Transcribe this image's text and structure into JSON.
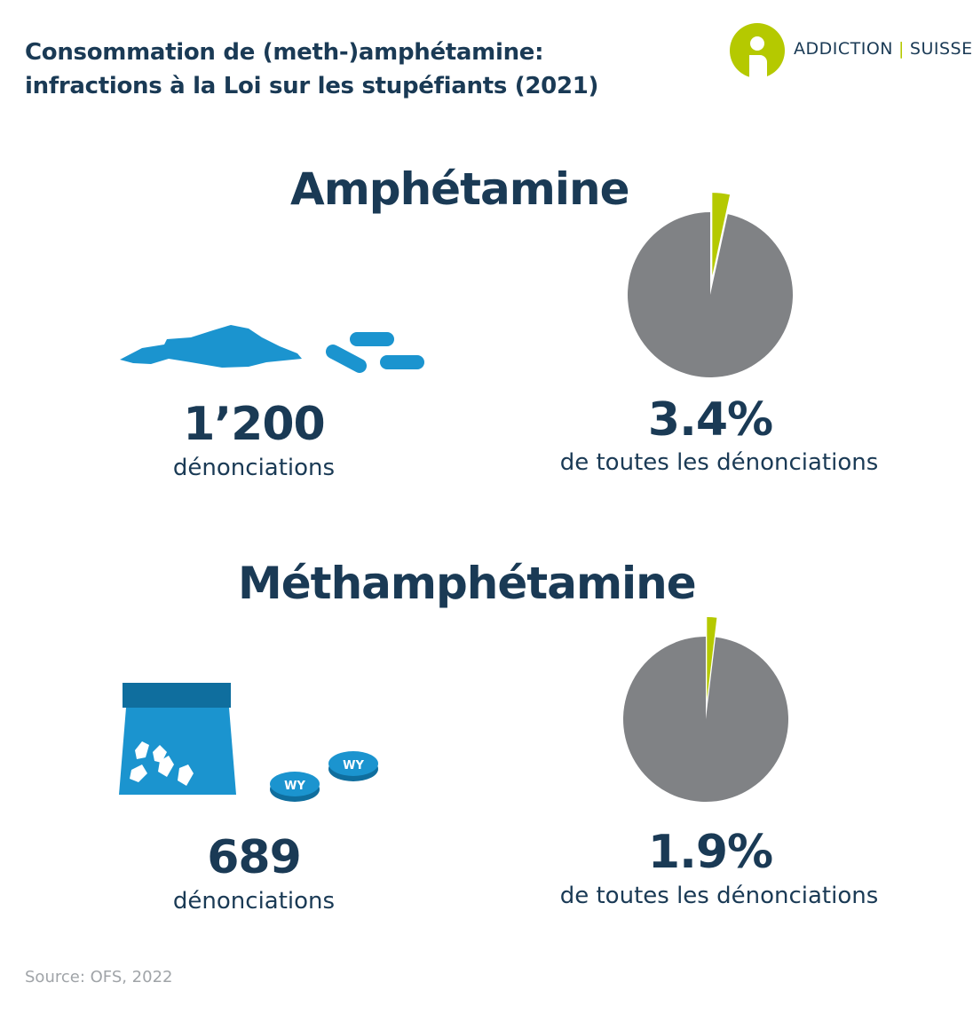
{
  "title": {
    "line1": "Consommation de (meth-)amphétamine:",
    "line2": "infractions à la Loi sur les stupéfiants (2021)"
  },
  "logo": {
    "left": "ADDICTION",
    "right": "SUISSE"
  },
  "source": "Source: OFS, 2022",
  "colors": {
    "navy": "#1a3a55",
    "blue": "#1b94cf",
    "grey": "#808285",
    "lime": "#b5c900"
  },
  "sections": [
    {
      "heading": "Amphétamine",
      "count": "1’200",
      "count_label": "dénonciations",
      "percent_text": "3.4%",
      "percent_label": "de toutes les dénonciations"
    },
    {
      "heading": "Méthamphétamine",
      "count": "689",
      "count_label": "dénonciations",
      "percent_text": "1.9%",
      "percent_label": "de toutes les dénonciations",
      "pill_mark": "WY"
    }
  ],
  "chart_data": [
    {
      "type": "pie",
      "title": "Amphétamine",
      "slices": [
        {
          "value": 3.4,
          "color": "#b5c900"
        },
        {
          "value": 96.6,
          "color": "#808285"
        }
      ]
    },
    {
      "type": "pie",
      "title": "Méthamphétamine",
      "slices": [
        {
          "value": 1.9,
          "color": "#b5c900"
        },
        {
          "value": 98.1,
          "color": "#808285"
        }
      ]
    }
  ]
}
